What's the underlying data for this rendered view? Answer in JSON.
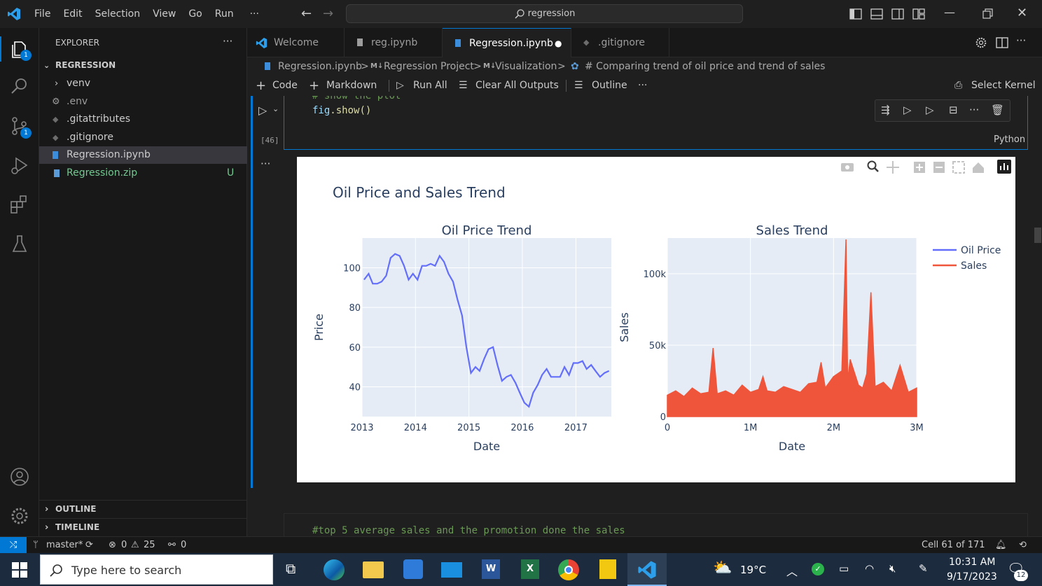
{
  "titlebar": {
    "menus": [
      "File",
      "Edit",
      "Selection",
      "View",
      "Go",
      "Run",
      "···"
    ],
    "search_text": "regression"
  },
  "activity": {
    "explorer_badge": "1",
    "scm_badge": "1"
  },
  "sidebar": {
    "header": "EXPLORER",
    "more": "···",
    "folder": "REGRESSION",
    "items": [
      {
        "label": "venv",
        "kind": "folder"
      },
      {
        "label": ".env",
        "kind": "gear"
      },
      {
        "label": ".gitattributes",
        "kind": "git"
      },
      {
        "label": ".gitignore",
        "kind": "git"
      },
      {
        "label": "Regression.ipynb",
        "kind": "notebook"
      },
      {
        "label": "Regression.zip",
        "kind": "zip",
        "badge": "U"
      }
    ],
    "outline": "OUTLINE",
    "timeline": "TIMELINE"
  },
  "tabs": [
    {
      "label": "Welcome"
    },
    {
      "label": "reg.ipynb"
    },
    {
      "label": "Regression.ipynb",
      "dirty": "●"
    },
    {
      "label": ".gitignore"
    }
  ],
  "breadcrumb": {
    "file": "Regression.ipynb",
    "md1": "Regression Project",
    "md2": "Visualization",
    "cell": "# Comparing trend of oil price and trend of sales",
    "mtag": "M↓",
    "sep": ">"
  },
  "toolbar": {
    "code": "Code",
    "markdown": "Markdown",
    "run_all": "Run All",
    "clear": "Clear All Outputs",
    "outline": "Outline",
    "more": "···",
    "kernel": "Select Kernel"
  },
  "cell": {
    "prev_line": "# show the plot",
    "code_obj": "fig",
    "code_call": ".show()",
    "exec_count": "[46]",
    "language": "Python",
    "output_more": "···",
    "next_code": "#top 5 average sales and the promotion done the sales"
  },
  "chart_data": [
    {
      "type": "line",
      "title": "Oil Price Trend",
      "xlabel": "Date",
      "ylabel": "Price",
      "x_ticks": [
        "2013",
        "2014",
        "2015",
        "2016",
        "2017"
      ],
      "y_ticks": [
        40,
        60,
        80,
        100
      ],
      "xlim": [
        "2013-01-01",
        "2017-08-31"
      ],
      "ylim": [
        25,
        115
      ],
      "series": [
        {
          "name": "Oil Price",
          "color": "#636efa",
          "x": [
            "2013-01",
            "2013-02",
            "2013-03",
            "2013-04",
            "2013-05",
            "2013-06",
            "2013-07",
            "2013-08",
            "2013-09",
            "2013-10",
            "2013-11",
            "2013-12",
            "2014-01",
            "2014-02",
            "2014-03",
            "2014-04",
            "2014-05",
            "2014-06",
            "2014-07",
            "2014-08",
            "2014-09",
            "2014-10",
            "2014-11",
            "2014-12",
            "2015-01",
            "2015-02",
            "2015-03",
            "2015-04",
            "2015-05",
            "2015-06",
            "2015-07",
            "2015-08",
            "2015-09",
            "2015-10",
            "2015-11",
            "2015-12",
            "2016-01",
            "2016-02",
            "2016-03",
            "2016-04",
            "2016-05",
            "2016-06",
            "2016-07",
            "2016-08",
            "2016-09",
            "2016-10",
            "2016-11",
            "2016-12",
            "2017-01",
            "2017-02",
            "2017-03",
            "2017-04",
            "2017-05",
            "2017-06",
            "2017-07",
            "2017-08"
          ],
          "y": [
            94,
            97,
            92,
            92,
            93,
            96,
            105,
            107,
            106,
            101,
            94,
            97,
            94,
            101,
            101,
            102,
            101,
            106,
            103,
            97,
            93,
            84,
            76,
            60,
            47,
            50,
            48,
            54,
            59,
            60,
            51,
            43,
            45,
            46,
            42,
            37,
            32,
            30,
            37,
            41,
            46,
            49,
            45,
            45,
            45,
            50,
            46,
            52,
            52,
            53,
            49,
            51,
            48,
            45,
            47,
            48
          ]
        }
      ]
    },
    {
      "type": "line",
      "title": "Sales Trend",
      "xlabel": "Date",
      "ylabel": "Sales",
      "x_ticks": [
        "0",
        "1M",
        "2M",
        "3M"
      ],
      "y_ticks": [
        "0",
        "50k",
        "100k"
      ],
      "xlim": [
        0,
        3000000
      ],
      "ylim": [
        0,
        125000
      ],
      "series": [
        {
          "name": "Sales",
          "color": "#ef553b",
          "x": [
            0,
            100000,
            200000,
            300000,
            400000,
            500000,
            550000,
            600000,
            700000,
            800000,
            900000,
            1000000,
            1100000,
            1150000,
            1200000,
            1300000,
            1400000,
            1500000,
            1600000,
            1700000,
            1800000,
            1850000,
            1900000,
            2000000,
            2100000,
            2150000,
            2170000,
            2200000,
            2300000,
            2350000,
            2400000,
            2450000,
            2500000,
            2600000,
            2700000,
            2800000,
            2900000,
            3000000
          ],
          "y": [
            15000,
            18000,
            14000,
            20000,
            16000,
            17000,
            48000,
            16000,
            18000,
            15000,
            22000,
            17000,
            19000,
            28000,
            18000,
            17000,
            21000,
            19000,
            17000,
            23000,
            24000,
            38000,
            20000,
            28000,
            32000,
            124000,
            25000,
            40000,
            22000,
            20000,
            30000,
            87000,
            21000,
            24000,
            18000,
            36000,
            17000,
            20000
          ]
        }
      ]
    }
  ],
  "plot": {
    "title": "Oil Price and Sales Trend",
    "legend": [
      "Oil Price",
      "Sales"
    ],
    "legend_position": "top-right"
  },
  "statusbar": {
    "branch": "master*",
    "errors": "0",
    "warnings": "25",
    "ports": "0",
    "cell_pos": "Cell 61 of 171"
  },
  "taskbar": {
    "search_placeholder": "Type here to search",
    "weather": "19°C",
    "time": "10:31 AM",
    "date": "9/17/2023",
    "notif_count": "12"
  }
}
